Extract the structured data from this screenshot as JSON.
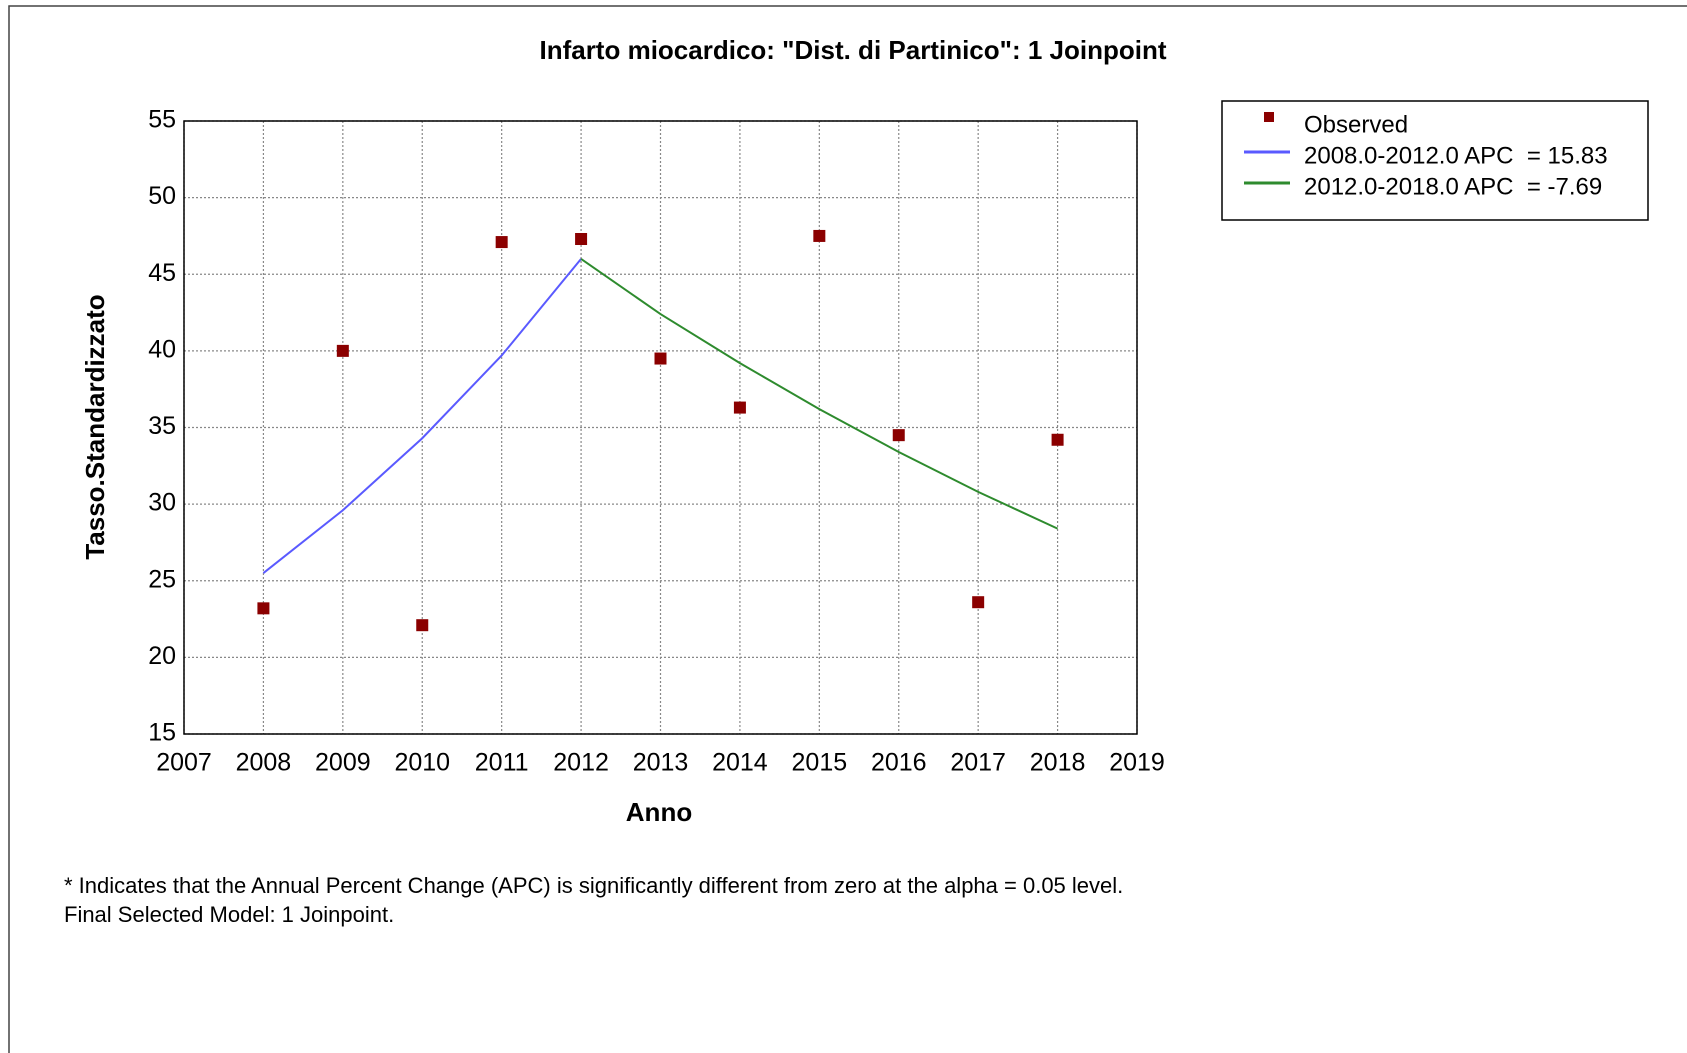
{
  "chart_data": {
    "type": "scatter",
    "title": "Infarto miocardico: \"Dist. di Partinico\": 1 Joinpoint",
    "x_label": "Anno",
    "y_label": "Tasso.Standardizzato",
    "xlim": [
      2007,
      2019
    ],
    "xticks": [
      2007,
      2008,
      2009,
      2010,
      2011,
      2012,
      2013,
      2014,
      2015,
      2016,
      2017,
      2018,
      2019
    ],
    "ylim": [
      15,
      55
    ],
    "yticks": [
      15,
      20,
      25,
      30,
      35,
      40,
      45,
      50,
      55
    ],
    "grid": true,
    "legend": "top-right",
    "series": [
      {
        "name": "Observed",
        "color": "#8b0000",
        "mark": "point",
        "x": [
          2008,
          2009,
          2010,
          2011,
          2012,
          2013,
          2014,
          2015,
          2016,
          2017,
          2018
        ],
        "values": [
          23.2,
          40.0,
          22.1,
          47.1,
          47.3,
          39.5,
          36.3,
          47.5,
          34.5,
          23.6,
          34.2
        ]
      },
      {
        "name": "2008.0-2012.0 APC  = 15.83",
        "color": "#5a5aff",
        "mark": "line",
        "x": [
          2008,
          2009,
          2010,
          2011,
          2012
        ],
        "values": [
          25.5,
          29.6,
          34.3,
          39.7,
          46.0
        ]
      },
      {
        "name": "2012.0-2018.0 APC  = -7.69",
        "color": "#2e8b2e",
        "mark": "line",
        "x": [
          2012,
          2013,
          2014,
          2015,
          2016,
          2017,
          2018
        ],
        "values": [
          46.0,
          42.4,
          39.2,
          36.2,
          33.4,
          30.8,
          28.4
        ]
      }
    ],
    "notes": [
      "* Indicates that the Annual Percent Change (APC) is significantly different from zero at the alpha = 0.05 level.",
      "Final Selected Model: 1 Joinpoint."
    ]
  }
}
